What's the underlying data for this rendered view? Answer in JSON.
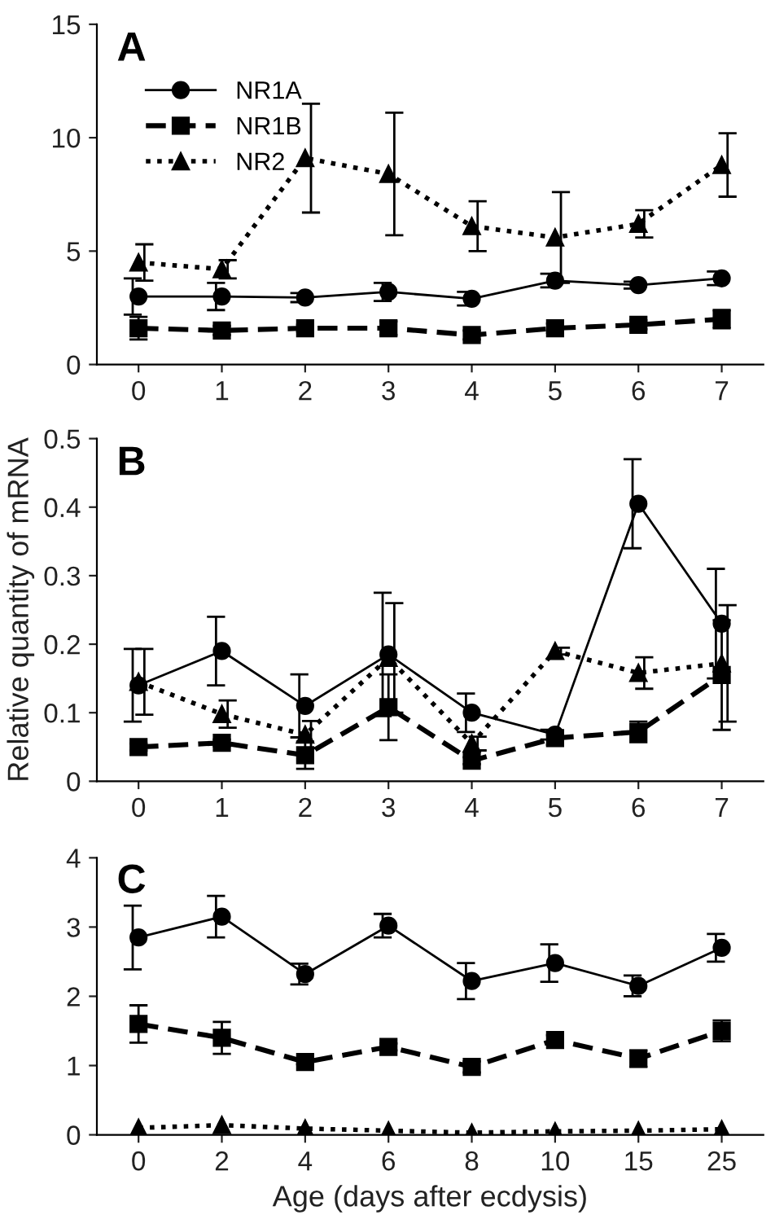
{
  "chart_data": [
    {
      "type": "line",
      "title": "A",
      "categories": [
        "0",
        "1",
        "2",
        "3",
        "4",
        "5",
        "6",
        "7"
      ],
      "ylim": [
        0,
        15
      ],
      "yticks": [
        0,
        5,
        10,
        15
      ],
      "grid": false,
      "legend": "top left",
      "series": [
        {
          "name": "NR1A",
          "color": "#000000",
          "marker": "circle",
          "line_style": "solid",
          "values": [
            3.0,
            3.0,
            2.95,
            3.2,
            2.9,
            3.7,
            3.5,
            3.8
          ],
          "errors": [
            0.8,
            0.6,
            0.2,
            0.4,
            0.3,
            0.3,
            0.15,
            0.3
          ]
        },
        {
          "name": "NR1B",
          "color": "#000000",
          "marker": "square",
          "line_style": "dashed",
          "values": [
            1.6,
            1.5,
            1.6,
            1.6,
            1.3,
            1.6,
            1.75,
            2.0
          ],
          "errors": [
            0.5,
            0.2,
            0.15,
            0.3,
            0.2,
            0.2,
            0.2,
            0.4
          ]
        },
        {
          "name": "NR2",
          "color": "#000000",
          "marker": "triangle",
          "line_style": "dotted",
          "values": [
            4.5,
            4.2,
            9.1,
            8.4,
            6.1,
            5.6,
            6.2,
            8.8
          ],
          "errors": [
            0.8,
            0.4,
            2.4,
            2.7,
            1.1,
            2.0,
            0.6,
            1.4
          ]
        }
      ]
    },
    {
      "type": "line",
      "title": "B",
      "ylabel": "Relative quantity of mRNA",
      "categories": [
        "0",
        "1",
        "2",
        "3",
        "4",
        "5",
        "6",
        "7"
      ],
      "ylim": [
        0,
        0.5
      ],
      "yticks": [
        {
          "value": 0,
          "label": "0"
        },
        0.1,
        0.2,
        0.3,
        0.4,
        0.5
      ],
      "grid": false,
      "series": [
        {
          "color": "#000000",
          "marker": "circle",
          "line_style": "solid",
          "values": [
            0.14,
            0.19,
            0.11,
            0.185,
            0.1,
            0.068,
            0.405,
            0.23
          ],
          "errors": [
            0.053,
            0.05,
            0.046,
            0.09,
            0.028,
            0.007,
            0.065,
            0.08
          ]
        },
        {
          "color": "#000000",
          "marker": "square",
          "line_style": "dashed",
          "values": [
            0.05,
            0.056,
            0.038,
            0.108,
            0.03,
            0.063,
            0.072,
            0.155
          ],
          "errors": [
            0.005,
            0.005,
            0.02,
            0.048,
            0.005,
            0.01,
            0.015,
            0.08
          ]
        },
        {
          "color": "#000000",
          "marker": "triangle",
          "line_style": "dotted",
          "values": [
            0.145,
            0.098,
            0.068,
            0.18,
            0.055,
            0.19,
            0.158,
            0.172
          ],
          "errors": [
            0.048,
            0.02,
            0.02,
            0.08,
            0.01,
            0.005,
            0.023,
            0.085
          ]
        }
      ]
    },
    {
      "type": "line",
      "title": "C",
      "xlabel": "Age (days after ecdysis)",
      "categories": [
        "0",
        "2",
        "4",
        "6",
        "8",
        "10",
        "15",
        "25"
      ],
      "ylim": [
        0,
        4
      ],
      "yticks": [
        0,
        1,
        2,
        3,
        4
      ],
      "grid": false,
      "series": [
        {
          "color": "#000000",
          "marker": "circle",
          "line_style": "solid",
          "values": [
            2.85,
            3.15,
            2.32,
            3.02,
            2.22,
            2.48,
            2.15,
            2.7
          ],
          "errors": [
            0.46,
            0.3,
            0.15,
            0.17,
            0.26,
            0.27,
            0.15,
            0.2
          ]
        },
        {
          "color": "#000000",
          "marker": "square",
          "line_style": "dashed",
          "values": [
            1.6,
            1.4,
            1.05,
            1.27,
            0.98,
            1.37,
            1.1,
            1.5
          ],
          "errors": [
            0.27,
            0.23,
            0.03,
            0.05,
            0.08,
            0.07,
            0.12,
            0.15
          ]
        },
        {
          "color": "#000000",
          "marker": "triangle",
          "line_style": "dotted",
          "values": [
            0.1,
            0.14,
            0.09,
            0.06,
            0.03,
            0.05,
            0.06,
            0.08
          ]
        }
      ]
    }
  ]
}
